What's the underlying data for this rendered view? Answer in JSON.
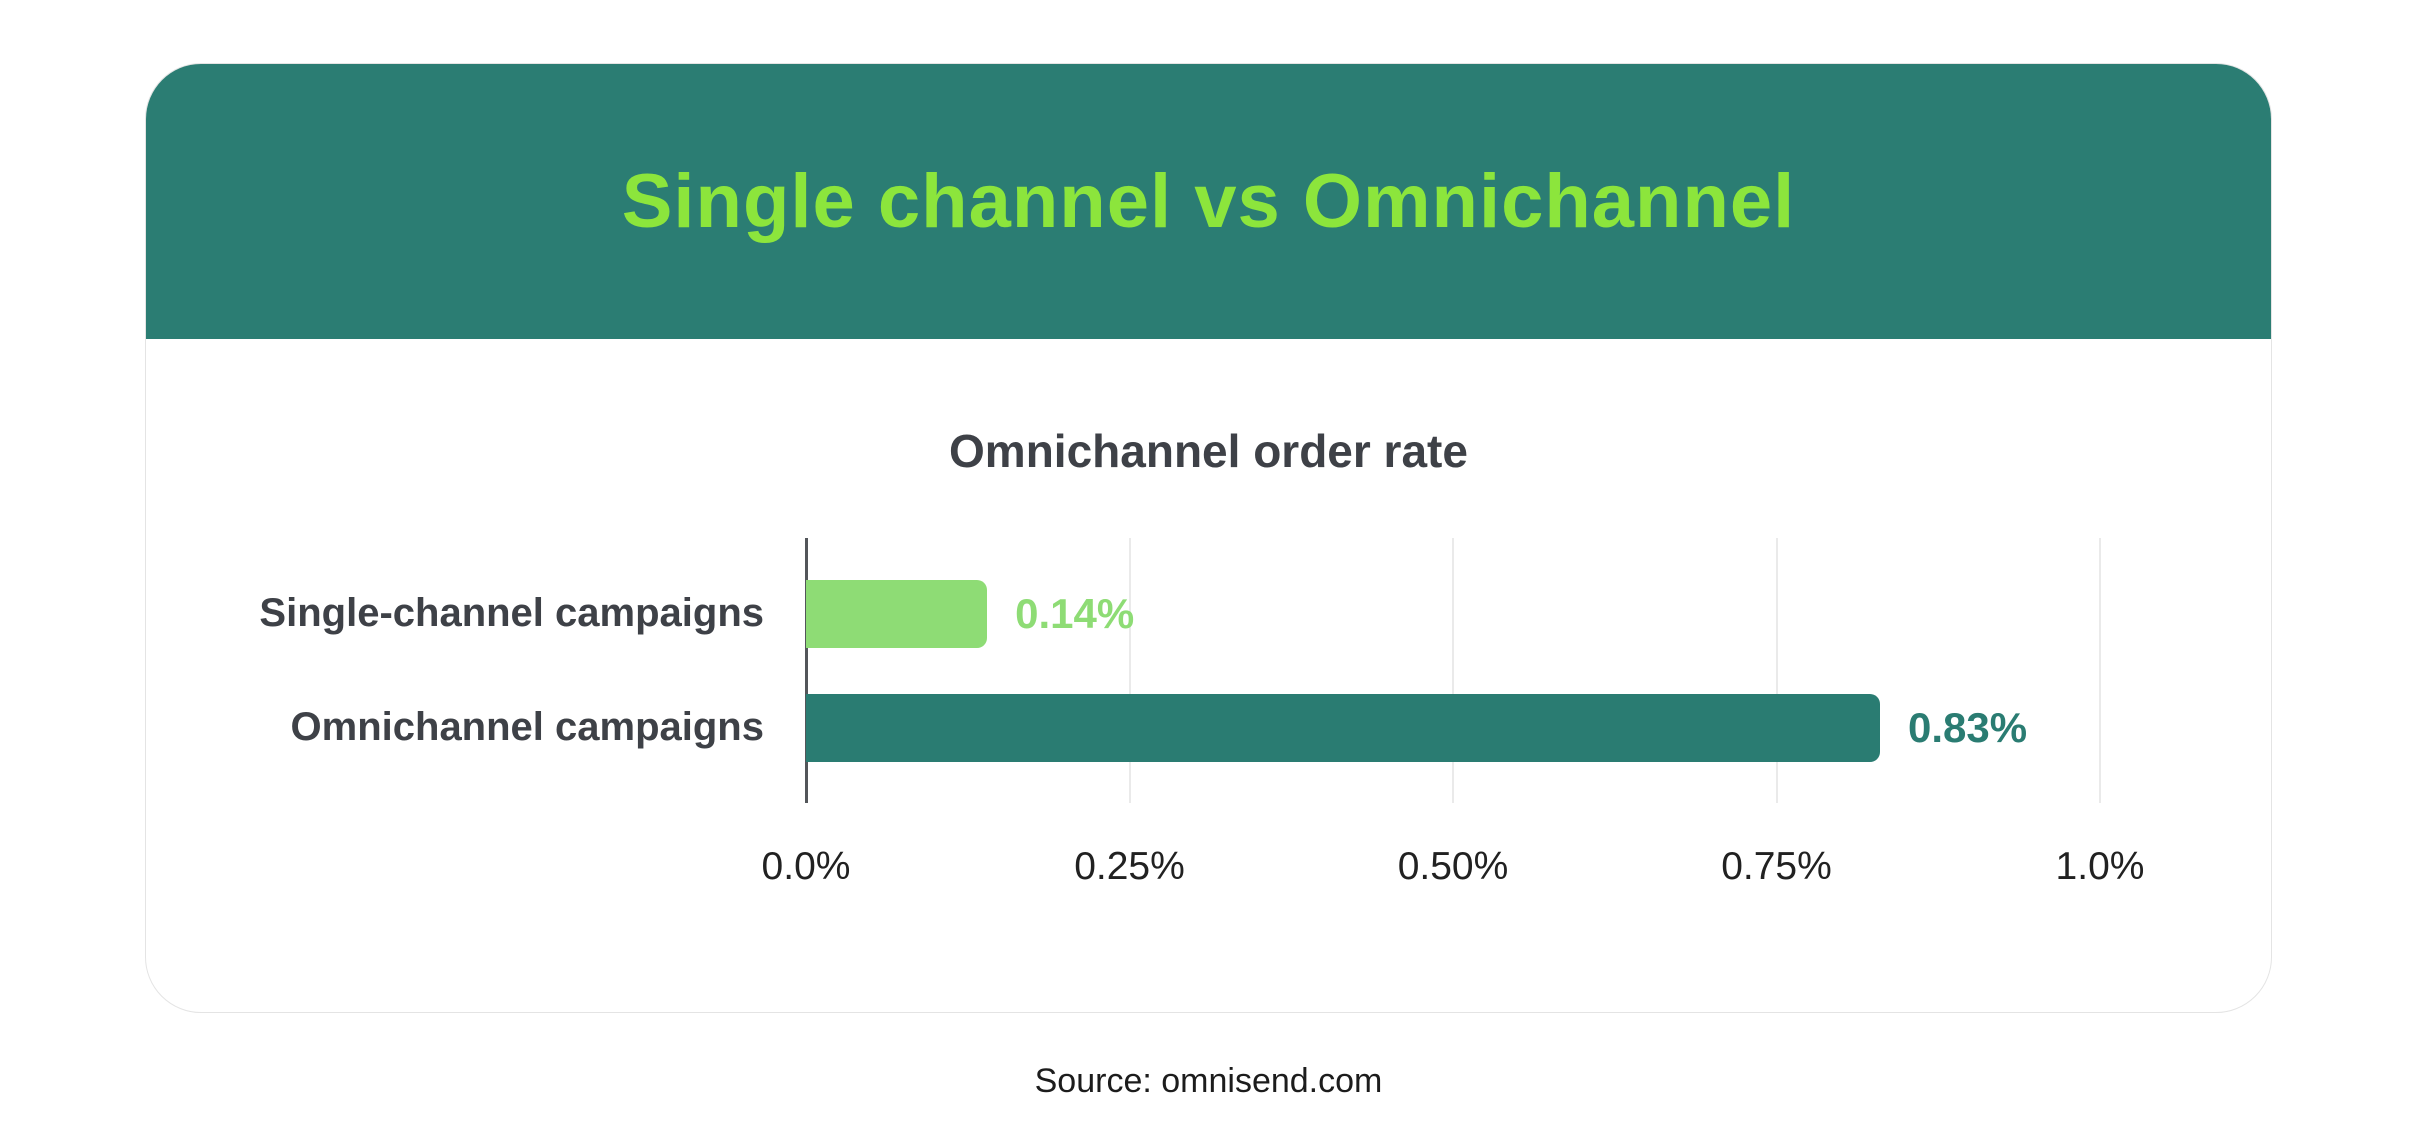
{
  "header": {
    "title": "Single channel vs Omnichannel"
  },
  "chart_data": {
    "type": "bar",
    "orientation": "horizontal",
    "title": "Omnichannel order rate",
    "categories": [
      "Single-channel campaigns",
      "Omnichannel campaigns"
    ],
    "values": [
      0.14,
      0.83
    ],
    "value_labels": [
      "0.14%",
      "0.83%"
    ],
    "series_colors": [
      "#8EDC75",
      "#2A7C72"
    ],
    "xlabel": "",
    "ylabel": "",
    "xlim": [
      0,
      1.0
    ],
    "x_ticks": [
      {
        "value": 0,
        "label": "0.0%"
      },
      {
        "value": 0.25,
        "label": "0.25%"
      },
      {
        "value": 0.5,
        "label": "0.50%"
      },
      {
        "value": 0.75,
        "label": "0.75%"
      },
      {
        "value": 1.0,
        "label": "1.0%"
      }
    ],
    "grid": true,
    "legend": false
  },
  "footer": {
    "source": "Source: omnisend.com"
  },
  "colors": {
    "header_bg": "#2B7D73",
    "header_title": "#8CE53C",
    "bar_single_channel": "#8EDC75",
    "bar_omnichannel": "#2A7C72",
    "label_text": "#3E4147"
  }
}
